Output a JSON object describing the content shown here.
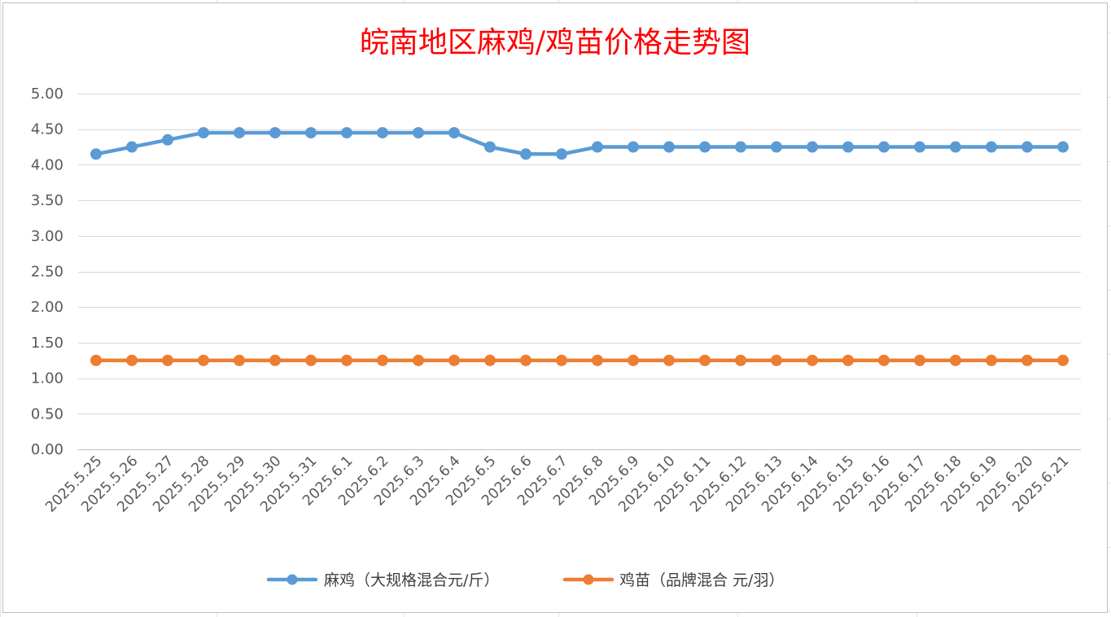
{
  "chart_data": {
    "type": "line",
    "title": "皖南地区麻鸡/鸡苗价格走势图",
    "xlabel": "",
    "ylabel": "",
    "ylim": [
      0,
      5
    ],
    "y_ticks": [
      "0.00",
      "0.50",
      "1.00",
      "1.50",
      "2.00",
      "2.50",
      "3.00",
      "3.50",
      "4.00",
      "4.50",
      "5.00"
    ],
    "grid": true,
    "legend_position": "bottom",
    "categories": [
      "2025.5.25",
      "2025.5.26",
      "2025.5.27",
      "2025.5.28",
      "2025.5.29",
      "2025.5.30",
      "2025.5.31",
      "2025.6.1",
      "2025.6.2",
      "2025.6.3",
      "2025.6.4",
      "2025.6.5",
      "2025.6.6",
      "2025.6.7",
      "2025.6.8",
      "2025.6.9",
      "2025.6.10",
      "2025.6.11",
      "2025.6.12",
      "2025.6.13",
      "2025.6.14",
      "2025.6.15",
      "2025.6.16",
      "2025.6.17",
      "2025.6.18",
      "2025.6.19",
      "2025.6.20",
      "2025.6.21"
    ],
    "series": [
      {
        "name": "麻鸡（大规格混合元/斤）",
        "color": "#5b9bd5",
        "values": [
          4.15,
          4.25,
          4.35,
          4.45,
          4.45,
          4.45,
          4.45,
          4.45,
          4.45,
          4.45,
          4.45,
          4.25,
          4.15,
          4.15,
          4.25,
          4.25,
          4.25,
          4.25,
          4.25,
          4.25,
          4.25,
          4.25,
          4.25,
          4.25,
          4.25,
          4.25,
          4.25,
          4.25
        ]
      },
      {
        "name": "鸡苗（品牌混合 元/羽）",
        "color": "#ed7d31",
        "values": [
          1.25,
          1.25,
          1.25,
          1.25,
          1.25,
          1.25,
          1.25,
          1.25,
          1.25,
          1.25,
          1.25,
          1.25,
          1.25,
          1.25,
          1.25,
          1.25,
          1.25,
          1.25,
          1.25,
          1.25,
          1.25,
          1.25,
          1.25,
          1.25,
          1.25,
          1.25,
          1.25,
          1.25
        ]
      }
    ]
  }
}
